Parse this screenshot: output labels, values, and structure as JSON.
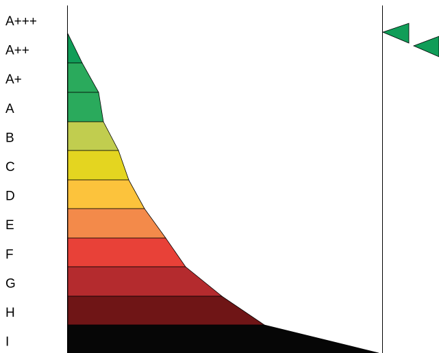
{
  "chart_data": {
    "type": "bar",
    "title": "",
    "categories": [
      "A+++",
      "A++",
      "A+",
      "A",
      "B",
      "C",
      "D",
      "E",
      "F",
      "G",
      "H",
      "I"
    ],
    "band_colors": {
      "A++": "#109d58",
      "A+": "#2aaa5c",
      "A": "#2aaa5c",
      "B": "#c1cd4f",
      "C": "#e4d520",
      "D": "#fcc33c",
      "E": "#f38a4a",
      "F": "#e84138",
      "G": "#b42b2e",
      "H": "#6f1516",
      "I": "#060606"
    },
    "indicator_color": "#109d58",
    "indicators": 2
  }
}
